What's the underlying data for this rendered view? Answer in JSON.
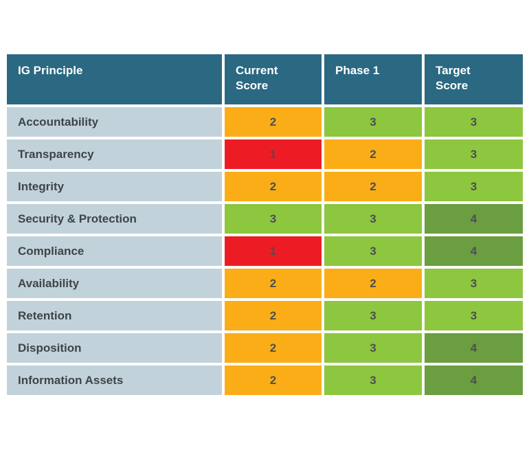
{
  "chart_data": {
    "type": "table",
    "columns": [
      "IG Principle",
      "Current Score",
      "Phase 1",
      "Target Score"
    ],
    "header_lines": [
      [
        "IG Principle"
      ],
      [
        "Current",
        "Score"
      ],
      [
        "Phase 1"
      ],
      [
        "Target",
        "Score"
      ]
    ],
    "rows": [
      {
        "principle": "Accountability",
        "scores": [
          2,
          3,
          3
        ]
      },
      {
        "principle": "Transparency",
        "scores": [
          1,
          2,
          3
        ]
      },
      {
        "principle": "Integrity",
        "scores": [
          2,
          2,
          3
        ]
      },
      {
        "principle": "Security & Protection",
        "scores": [
          3,
          3,
          4
        ]
      },
      {
        "principle": "Compliance",
        "scores": [
          1,
          3,
          4
        ]
      },
      {
        "principle": "Availability",
        "scores": [
          2,
          2,
          3
        ]
      },
      {
        "principle": "Retention",
        "scores": [
          2,
          3,
          3
        ]
      },
      {
        "principle": "Disposition",
        "scores": [
          2,
          3,
          4
        ]
      },
      {
        "principle": "Information Assets",
        "scores": [
          2,
          3,
          4
        ]
      }
    ],
    "score_colors": {
      "1": "#ed1c24",
      "2": "#fbad18",
      "3": "#8dc63f",
      "4": "#6a9e40"
    },
    "header_color": "#2b6882",
    "label_cell_color": "#c1d2da"
  }
}
